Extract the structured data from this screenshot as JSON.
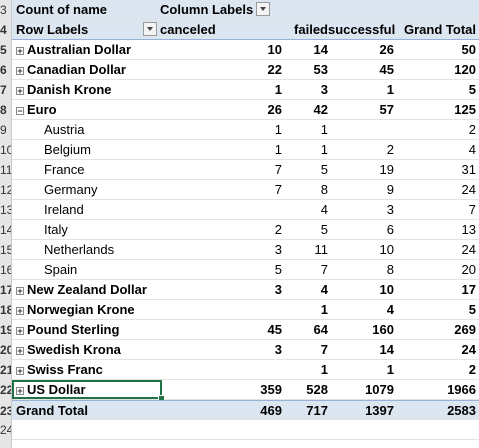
{
  "header1": {
    "row": "3",
    "title": "Count of name",
    "column_labels": "Column Labels"
  },
  "header2": {
    "row": "4",
    "row_labels": "Row Labels",
    "col1": "canceled",
    "col2": "failed",
    "col3": "successful",
    "col4": "Grand Total"
  },
  "rows": [
    {
      "row": "5",
      "label": "Australian Dollar",
      "expand": "+",
      "canceled": "10",
      "failed": "14",
      "successful": "26",
      "total": "50",
      "level": 0
    },
    {
      "row": "6",
      "label": "Canadian Dollar",
      "expand": "+",
      "canceled": "22",
      "failed": "53",
      "successful": "45",
      "total": "120",
      "level": 0
    },
    {
      "row": "7",
      "label": "Danish Krone",
      "expand": "+",
      "canceled": "1",
      "failed": "3",
      "successful": "1",
      "total": "5",
      "level": 0
    },
    {
      "row": "8",
      "label": "Euro",
      "expand": "−",
      "canceled": "26",
      "failed": "42",
      "successful": "57",
      "total": "125",
      "level": 0
    },
    {
      "row": "9",
      "label": "Austria",
      "canceled": "1",
      "failed": "1",
      "successful": "",
      "total": "2",
      "level": 1
    },
    {
      "row": "10",
      "label": "Belgium",
      "canceled": "1",
      "failed": "1",
      "successful": "2",
      "total": "4",
      "level": 1
    },
    {
      "row": "11",
      "label": "France",
      "canceled": "7",
      "failed": "5",
      "successful": "19",
      "total": "31",
      "level": 1
    },
    {
      "row": "12",
      "label": "Germany",
      "canceled": "7",
      "failed": "8",
      "successful": "9",
      "total": "24",
      "level": 1
    },
    {
      "row": "13",
      "label": "Ireland",
      "canceled": "",
      "failed": "4",
      "successful": "3",
      "total": "7",
      "level": 1
    },
    {
      "row": "14",
      "label": "Italy",
      "canceled": "2",
      "failed": "5",
      "successful": "6",
      "total": "13",
      "level": 1
    },
    {
      "row": "15",
      "label": "Netherlands",
      "canceled": "3",
      "failed": "11",
      "successful": "10",
      "total": "24",
      "level": 1
    },
    {
      "row": "16",
      "label": "Spain",
      "canceled": "5",
      "failed": "7",
      "successful": "8",
      "total": "20",
      "level": 1
    },
    {
      "row": "17",
      "label": "New Zealand Dollar",
      "expand": "+",
      "canceled": "3",
      "failed": "4",
      "successful": "10",
      "total": "17",
      "level": 0
    },
    {
      "row": "18",
      "label": "Norwegian Krone",
      "expand": "+",
      "canceled": "",
      "failed": "1",
      "successful": "4",
      "total": "5",
      "level": 0
    },
    {
      "row": "19",
      "label": "Pound Sterling",
      "expand": "+",
      "canceled": "45",
      "failed": "64",
      "successful": "160",
      "total": "269",
      "level": 0
    },
    {
      "row": "20",
      "label": "Swedish Krona",
      "expand": "+",
      "canceled": "3",
      "failed": "7",
      "successful": "14",
      "total": "24",
      "level": 0
    },
    {
      "row": "21",
      "label": "Swiss Franc",
      "expand": "+",
      "canceled": "",
      "failed": "1",
      "successful": "1",
      "total": "2",
      "level": 0
    },
    {
      "row": "22",
      "label": "US Dollar",
      "expand": "+",
      "canceled": "359",
      "failed": "528",
      "successful": "1079",
      "total": "1966",
      "level": 0
    }
  ],
  "grand_total": {
    "row": "23",
    "label": "Grand Total",
    "canceled": "469",
    "failed": "717",
    "successful": "1397",
    "total": "2583"
  },
  "last_row": {
    "row": "24"
  }
}
